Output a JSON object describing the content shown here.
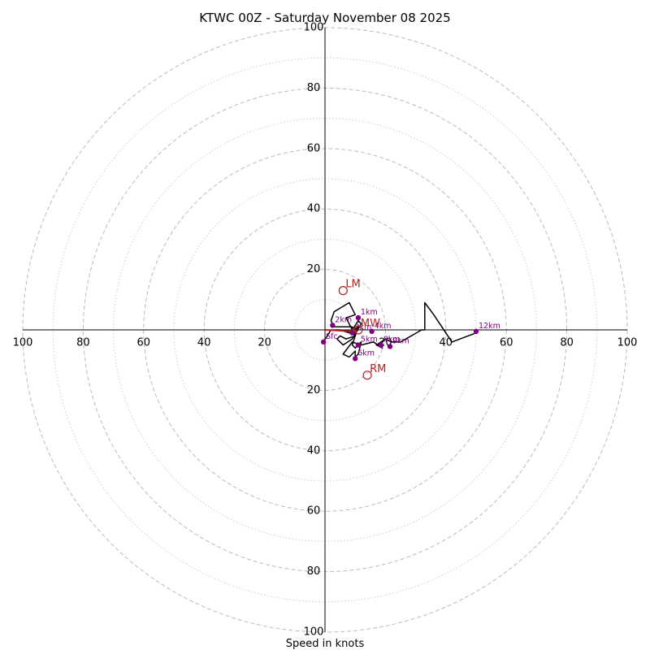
{
  "chart_data": {
    "type": "hodograph",
    "title": "KTWC 00Z - Saturday November 08 2025",
    "xlabel": "Speed in knots",
    "ring_max": 100,
    "major_rings": [
      20,
      40,
      60,
      80,
      100
    ],
    "minor_rings": [
      10,
      30,
      50,
      70,
      90
    ],
    "tick_labels": [
      "20",
      "40",
      "60",
      "80",
      "100"
    ],
    "colors": {
      "trace": "#000000",
      "height_marker": "#800080",
      "motion": "#b22222",
      "grid": "#bbbbbb",
      "axis": "#000000"
    },
    "trace": [
      [
        -0.5,
        -4
      ],
      [
        2,
        0
      ],
      [
        5,
        0
      ],
      [
        8,
        -1
      ],
      [
        11,
        1
      ],
      [
        10,
        -2
      ],
      [
        7,
        -3
      ],
      [
        5,
        -2
      ],
      [
        4,
        -3
      ],
      [
        6,
        -5
      ],
      [
        9,
        -3
      ],
      [
        12,
        2
      ],
      [
        11,
        3
      ],
      [
        9,
        0
      ],
      [
        7,
        4
      ],
      [
        10,
        5
      ],
      [
        8,
        9
      ],
      [
        3,
        6
      ],
      [
        2,
        3
      ],
      [
        3,
        1
      ],
      [
        9,
        1
      ],
      [
        10,
        -2
      ],
      [
        9,
        -5
      ],
      [
        10,
        -6
      ],
      [
        12,
        -4
      ],
      [
        11,
        -8
      ],
      [
        10,
        -9
      ],
      [
        10,
        -7
      ],
      [
        8,
        -9
      ],
      [
        6,
        -8
      ],
      [
        9,
        -4
      ],
      [
        12,
        -5
      ],
      [
        16,
        -4
      ],
      [
        19,
        -6
      ],
      [
        17,
        -5
      ],
      [
        20,
        -3
      ],
      [
        22,
        -4
      ],
      [
        25,
        -4
      ],
      [
        32,
        0
      ],
      [
        33,
        0
      ],
      [
        33,
        9
      ],
      [
        36,
        5
      ],
      [
        42,
        -4
      ],
      [
        50,
        -1
      ]
    ],
    "height_markers": [
      {
        "label": "Sfc",
        "u": -0.5,
        "v": -4
      },
      {
        "label": "1km",
        "u": 11,
        "v": 4
      },
      {
        "label": "2km",
        "u": 2.5,
        "v": 1.5
      },
      {
        "label": "3km",
        "u": 9,
        "v": -1
      },
      {
        "label": "4km",
        "u": 15.5,
        "v": -0.5
      },
      {
        "label": "5km",
        "u": 11,
        "v": -5
      },
      {
        "label": "6km",
        "u": 10,
        "v": -9.5
      },
      {
        "label": "8km",
        "u": 18.5,
        "v": -5
      },
      {
        "label": "9km",
        "u": 21.5,
        "v": -5.5
      },
      {
        "label": "12km",
        "u": 50,
        "v": -0.5
      }
    ],
    "storm_motion": [
      {
        "label": "LM",
        "u": 6,
        "v": 13
      },
      {
        "label": "MW",
        "u": 11,
        "v": 0
      },
      {
        "label": "RM",
        "u": 14,
        "v": -15
      }
    ],
    "mean_wind_arrow": {
      "from": [
        0,
        0
      ],
      "to": [
        11,
        -0.5
      ]
    }
  }
}
